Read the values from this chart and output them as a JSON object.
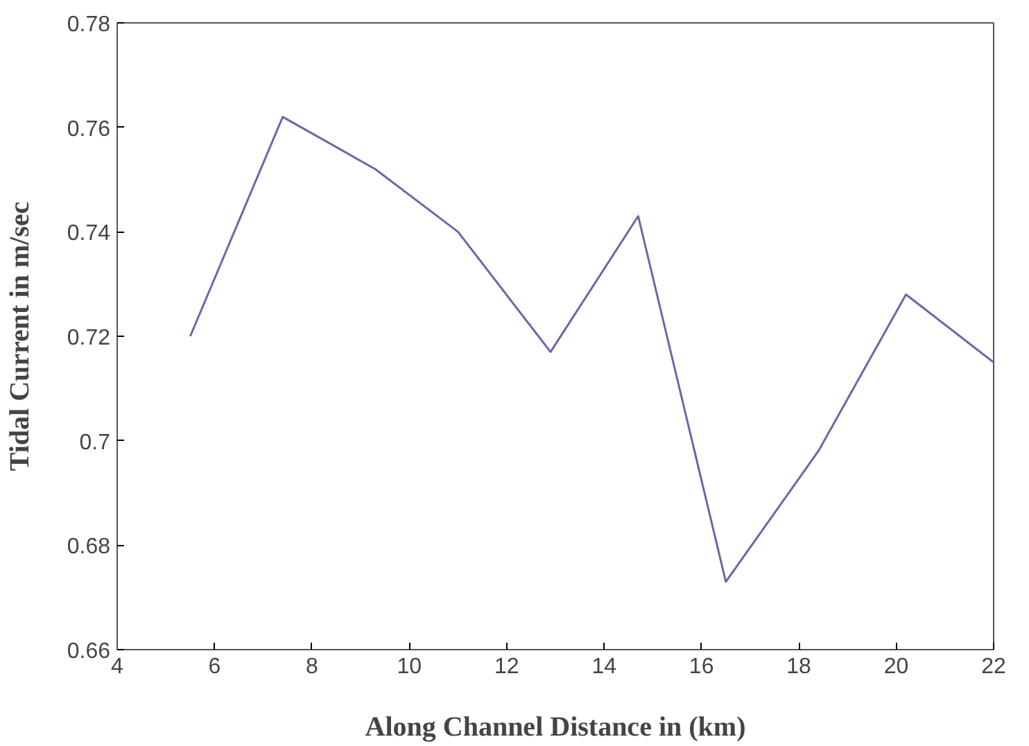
{
  "chart_data": {
    "type": "line",
    "xlabel": "Along Channel Distance in (km)",
    "ylabel": "Tidal Current in m/sec",
    "x": [
      5.5,
      7.4,
      9.3,
      11.0,
      12.9,
      14.7,
      16.5,
      18.4,
      20.2,
      22.0
    ],
    "series": [
      {
        "color": "#6868a8",
        "values": [
          0.72,
          0.762,
          0.752,
          0.74,
          0.717,
          0.743,
          0.673,
          0.698,
          0.728,
          0.715
        ]
      }
    ],
    "xlim": [
      4,
      22
    ],
    "ylim": [
      0.66,
      0.78
    ],
    "xticks": [
      4,
      6,
      8,
      10,
      12,
      14,
      16,
      18,
      20,
      22
    ],
    "yticks": [
      0.66,
      0.68,
      0.7,
      0.72,
      0.74,
      0.76,
      0.78
    ],
    "marker": "none",
    "line_style": "solid"
  }
}
